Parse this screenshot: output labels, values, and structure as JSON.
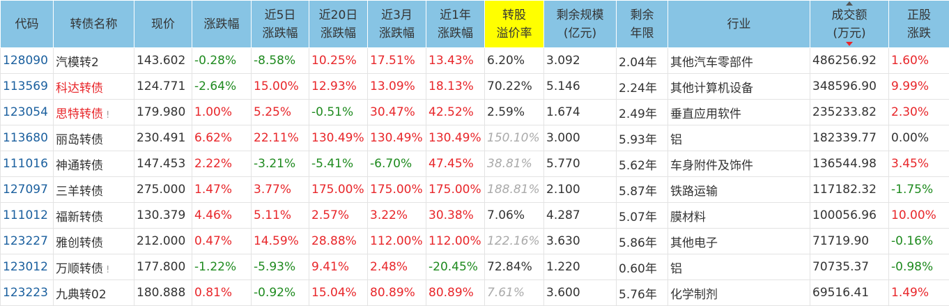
{
  "headers": [
    "代码",
    "转债名称",
    "现价",
    "涨跌幅",
    "近5日\n涨跌幅",
    "近20日\n涨跌幅",
    "近3月\n涨跌幅",
    "近1年\n涨跌幅",
    "转股\n溢价率",
    "剩余规模\n(亿元)",
    "剩余\n年限",
    "行业",
    "成交额\n(万元)",
    "正股\n涨跌"
  ],
  "sort": {
    "column": "成交额",
    "direction": "desc"
  },
  "colors": {
    "header": "#87c4e4",
    "highlight": "#ffff00",
    "up": "#e8262a",
    "down": "#1e8a1e",
    "code": "#1a5f9e"
  },
  "rows": [
    {
      "code": "128090",
      "name": "汽模转2",
      "name_red": false,
      "warn": "",
      "price": "143.602",
      "chg": "-0.28%",
      "d5": "-8.58%",
      "d20": "10.25%",
      "m3": "17.51%",
      "y1": "13.43%",
      "prem": "6.20%",
      "prem_grey": false,
      "scale": "3.092",
      "years": "2.04年",
      "industry": "其他汽车零部件",
      "volume": "486256.92",
      "stock": "1.60%"
    },
    {
      "code": "113569",
      "name": "科达转债",
      "name_red": true,
      "warn": "",
      "price": "124.771",
      "chg": "-2.64%",
      "d5": "15.00%",
      "d20": "12.93%",
      "m3": "13.09%",
      "y1": "18.13%",
      "prem": "70.22%",
      "prem_grey": false,
      "scale": "5.146",
      "years": "2.24年",
      "industry": "其他计算机设备",
      "volume": "348596.90",
      "stock": "9.99%"
    },
    {
      "code": "123054",
      "name": "思特转债",
      "name_red": true,
      "warn": "!",
      "price": "179.980",
      "chg": "1.00%",
      "d5": "5.25%",
      "d20": "-0.51%",
      "m3": "30.47%",
      "y1": "42.52%",
      "prem": "2.59%",
      "prem_grey": false,
      "scale": "1.674",
      "years": "2.49年",
      "industry": "垂直应用软件",
      "volume": "235233.82",
      "stock": "2.30%"
    },
    {
      "code": "113680",
      "name": "丽岛转债",
      "name_red": false,
      "warn": "",
      "price": "230.491",
      "chg": "6.62%",
      "d5": "22.11%",
      "d20": "130.49%",
      "m3": "130.49%",
      "y1": "130.49%",
      "prem": "150.10%",
      "prem_grey": true,
      "scale": "3.000",
      "years": "5.93年",
      "industry": "铝",
      "volume": "182339.77",
      "stock": "0.00%"
    },
    {
      "code": "111016",
      "name": "神通转债",
      "name_red": false,
      "warn": "",
      "price": "147.453",
      "chg": "2.22%",
      "d5": "-3.21%",
      "d20": "-5.41%",
      "m3": "-6.70%",
      "y1": "47.45%",
      "prem": "38.81%",
      "prem_grey": true,
      "scale": "5.770",
      "years": "5.62年",
      "industry": "车身附件及饰件",
      "volume": "136544.98",
      "stock": "3.45%"
    },
    {
      "code": "127097",
      "name": "三羊转债",
      "name_red": false,
      "warn": "",
      "price": "275.000",
      "chg": "1.47%",
      "d5": "3.77%",
      "d20": "175.00%",
      "m3": "175.00%",
      "y1": "175.00%",
      "prem": "188.81%",
      "prem_grey": true,
      "scale": "2.100",
      "years": "5.87年",
      "industry": "铁路运输",
      "volume": "117182.32",
      "stock": "-1.75%"
    },
    {
      "code": "111012",
      "name": "福新转债",
      "name_red": false,
      "warn": "",
      "price": "130.379",
      "chg": "4.46%",
      "d5": "5.11%",
      "d20": "2.57%",
      "m3": "3.22%",
      "y1": "30.38%",
      "prem": "7.06%",
      "prem_grey": false,
      "scale": "4.287",
      "years": "5.07年",
      "industry": "膜材料",
      "volume": "100056.96",
      "stock": "10.00%"
    },
    {
      "code": "123227",
      "name": "雅创转债",
      "name_red": false,
      "warn": "",
      "price": "212.000",
      "chg": "0.47%",
      "d5": "14.59%",
      "d20": "28.88%",
      "m3": "112.00%",
      "y1": "112.00%",
      "prem": "122.16%",
      "prem_grey": true,
      "scale": "3.630",
      "years": "5.86年",
      "industry": "其他电子",
      "volume": "71719.90",
      "stock": "-0.16%"
    },
    {
      "code": "123012",
      "name": "万顺转债",
      "name_red": false,
      "warn": "!",
      "price": "177.800",
      "chg": "-1.22%",
      "d5": "-5.93%",
      "d20": "9.41%",
      "m3": "2.48%",
      "y1": "-20.45%",
      "prem": "72.84%",
      "prem_grey": false,
      "scale": "1.220",
      "years": "0.60年",
      "industry": "铝",
      "volume": "70735.37",
      "stock": "-0.98%"
    },
    {
      "code": "123223",
      "name": "九典转02",
      "name_red": false,
      "warn": "",
      "price": "180.888",
      "chg": "0.81%",
      "d5": "-0.92%",
      "d20": "15.04%",
      "m3": "80.89%",
      "y1": "80.89%",
      "prem": "7.61%",
      "prem_grey": true,
      "scale": "3.600",
      "years": "5.76年",
      "industry": "化学制剂",
      "volume": "69516.41",
      "stock": "1.49%"
    }
  ]
}
